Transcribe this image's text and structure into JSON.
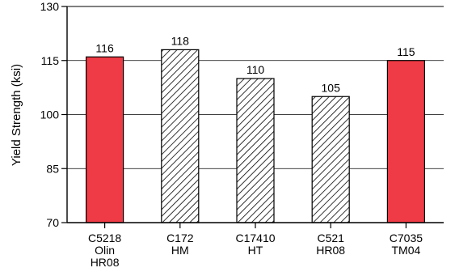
{
  "chart_data": {
    "type": "bar",
    "title": "",
    "xlabel": "",
    "ylabel": "Yield Strength (ksi)",
    "ylim": [
      70,
      130
    ],
    "yticks": [
      70,
      85,
      100,
      115,
      130
    ],
    "grid": true,
    "categories": [
      [
        "C5218",
        "Olin",
        "HR08"
      ],
      [
        "C172",
        "HM"
      ],
      [
        "C17410",
        "HT"
      ],
      [
        "C521",
        "HR08"
      ],
      [
        "C7035",
        "TM04"
      ]
    ],
    "values": [
      116,
      118,
      110,
      105,
      115
    ],
    "data_labels": [
      "116",
      "118",
      "110",
      "105",
      "115"
    ],
    "bar_styles": [
      "solid",
      "hatched",
      "hatched",
      "hatched",
      "solid"
    ],
    "colors": {
      "solid_fill": "#ee3b45",
      "hatch_fill": "#ffffff",
      "hatch_line": "#000000",
      "outline": "#000000"
    }
  }
}
